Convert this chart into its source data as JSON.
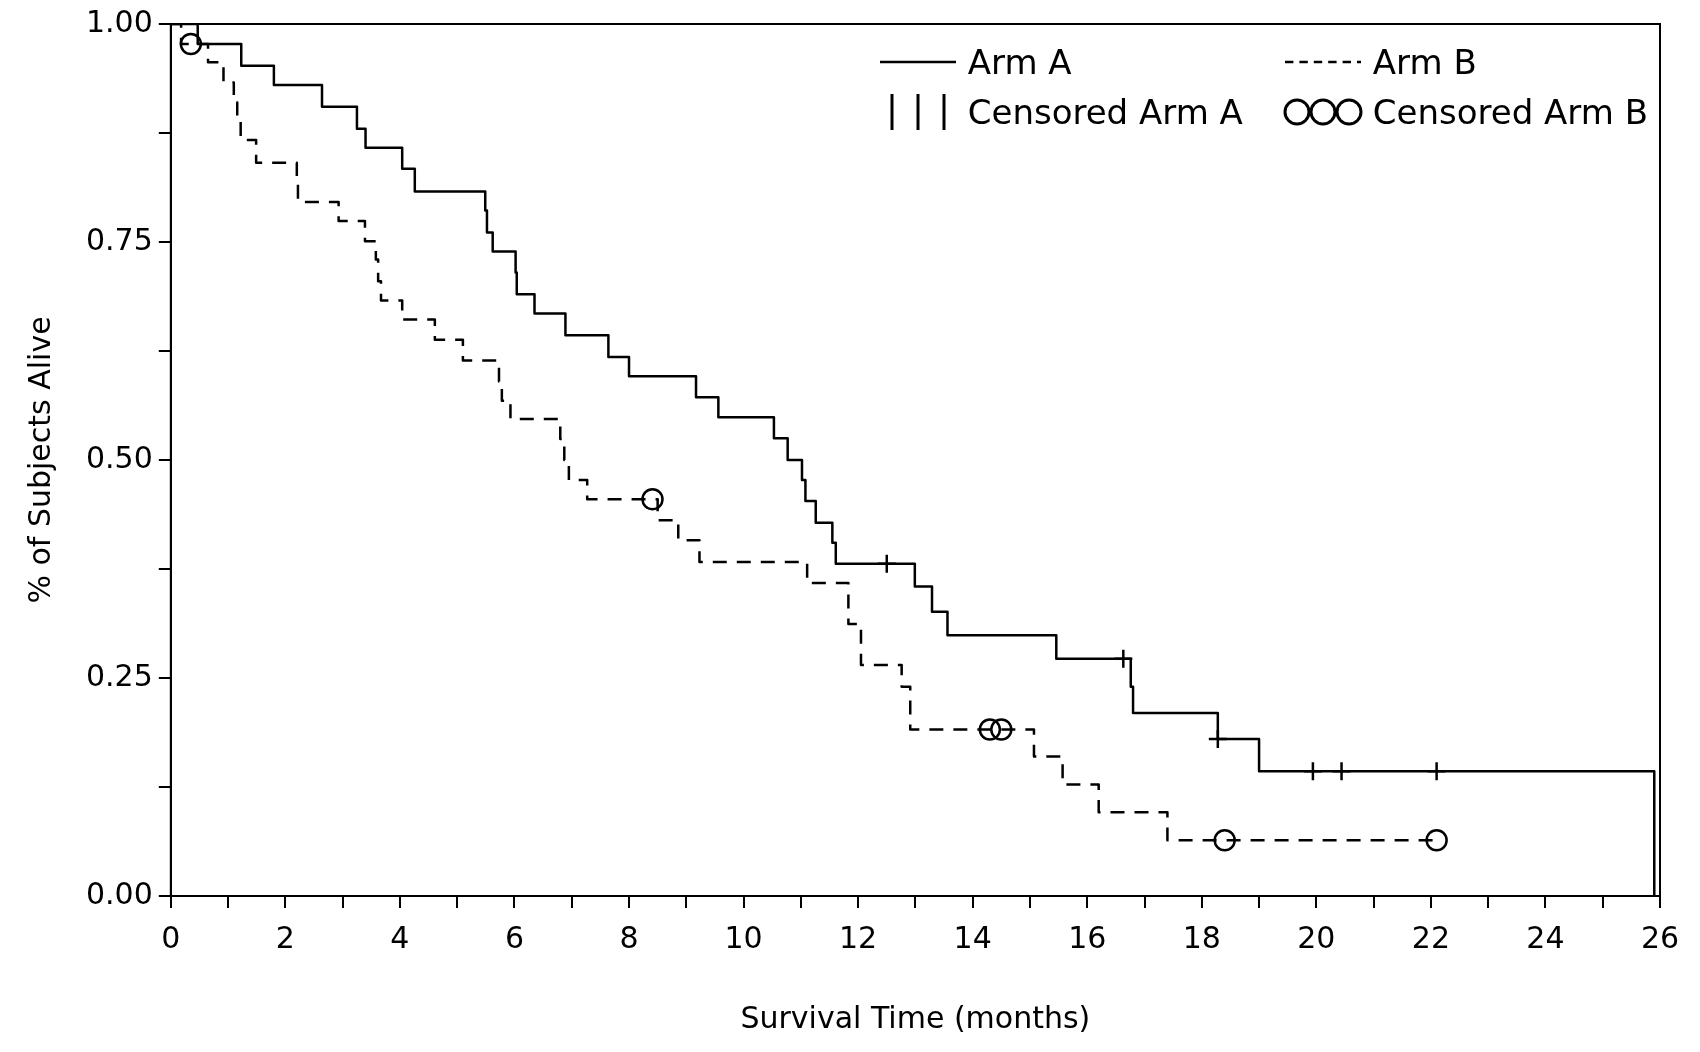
{
  "chart_data": {
    "type": "step",
    "xlabel": "Survival Time (months)",
    "ylabel": "% of Subjects Alive",
    "xlim": [
      0,
      26
    ],
    "xticks": [
      0,
      {
        "value": 1,
        "label": null
      },
      2,
      {
        "value": 3,
        "label": null
      },
      4,
      {
        "value": 5,
        "label": null
      },
      6,
      {
        "value": 7,
        "label": null
      },
      8,
      {
        "value": 9,
        "label": null
      },
      10,
      {
        "value": 11,
        "label": null
      },
      12,
      {
        "value": 13,
        "label": null
      },
      14,
      {
        "value": 15,
        "label": null
      },
      16,
      {
        "value": 17,
        "label": null
      },
      18,
      {
        "value": 19,
        "label": null
      },
      20,
      {
        "value": 21,
        "label": null
      },
      22,
      {
        "value": 23,
        "label": null
      },
      24,
      {
        "value": 25,
        "label": null
      },
      26
    ],
    "ylim": [
      0,
      1
    ],
    "yticks": [
      {
        "value": 0,
        "label": "0.00"
      },
      {
        "value": 0.125,
        "label": null
      },
      {
        "value": 0.25,
        "label": "0.25"
      },
      {
        "value": 0.375,
        "label": null
      },
      {
        "value": 0.5,
        "label": "0.50"
      },
      {
        "value": 0.625,
        "label": null
      },
      {
        "value": 0.75,
        "label": "0.75"
      },
      {
        "value": 0.875,
        "label": null
      },
      {
        "value": 1,
        "label": "1.00"
      }
    ],
    "grid": false,
    "legend": "top right",
    "series": [
      {
        "name": "Arm A",
        "color": "#000000",
        "line_style": "solid",
        "x": [
          0,
          0.47,
          1.23,
          1.8,
          2.64,
          3.25,
          3.4,
          4.04,
          4.26,
          5.49,
          5.52,
          5.62,
          6.02,
          6.04,
          6.35,
          6.89,
          7.64,
          8.0,
          9.17,
          9.56,
          10.53,
          10.77,
          11.02,
          11.08,
          11.26,
          11.55,
          11.61,
          12.99,
          13.29,
          13.56,
          15.46,
          16.76,
          16.8,
          18.28,
          19.0,
          25.9
        ],
        "values": [
          1,
          0.977,
          0.952,
          0.93,
          0.905,
          0.88,
          0.858,
          0.834,
          0.808,
          0.786,
          0.761,
          0.739,
          0.715,
          0.69,
          0.668,
          0.643,
          0.618,
          0.596,
          0.572,
          0.549,
          0.525,
          0.5,
          0.477,
          0.453,
          0.428,
          0.405,
          0.381,
          0.355,
          0.326,
          0.299,
          0.272,
          0.24,
          0.21,
          0.18,
          0.143,
          0
        ]
      },
      {
        "name": "Arm B",
        "color": "#000000",
        "line_style": "dashed",
        "x": [
          0,
          0.18,
          0.65,
          0.92,
          1.1,
          1.16,
          1.22,
          1.49,
          2.2,
          2.22,
          2.93,
          3.39,
          3.58,
          3.62,
          3.67,
          4.04,
          4.61,
          5.1,
          5.73,
          5.78,
          5.93,
          6.8,
          6.87,
          6.95,
          7.27,
          8.5,
          8.86,
          9.23,
          11.11,
          11.83,
          12.05,
          12.76,
          12.91,
          15.07,
          15.57,
          16.2,
          17.4,
          22.1
        ],
        "values": [
          1,
          0.977,
          0.956,
          0.933,
          0.91,
          0.888,
          0.867,
          0.841,
          0.818,
          0.796,
          0.774,
          0.751,
          0.73,
          0.705,
          0.683,
          0.661,
          0.638,
          0.614,
          0.59,
          0.568,
          0.547,
          0.524,
          0.5,
          0.477,
          0.455,
          0.431,
          0.408,
          0.383,
          0.359,
          0.312,
          0.265,
          0.24,
          0.191,
          0.16,
          0.128,
          0.096,
          0.064,
          0.064
        ]
      },
      {
        "name": "Censored Arm A",
        "type": "scatter",
        "color": "#000000",
        "marker": "cross",
        "x": [
          12.5,
          16.63,
          18.28,
          19.94,
          20.44,
          22.1
        ],
        "values": [
          0.381,
          0.272,
          0.18,
          0.143,
          0.143,
          0.143
        ]
      },
      {
        "name": "Censored Arm B",
        "type": "scatter",
        "color": "#000000",
        "marker": "circle",
        "x": [
          0.35,
          8.41,
          14.3,
          14.5,
          18.4,
          22.1
        ],
        "values": [
          0.977,
          0.455,
          0.191,
          0.191,
          0.064,
          0.064
        ]
      }
    ]
  }
}
